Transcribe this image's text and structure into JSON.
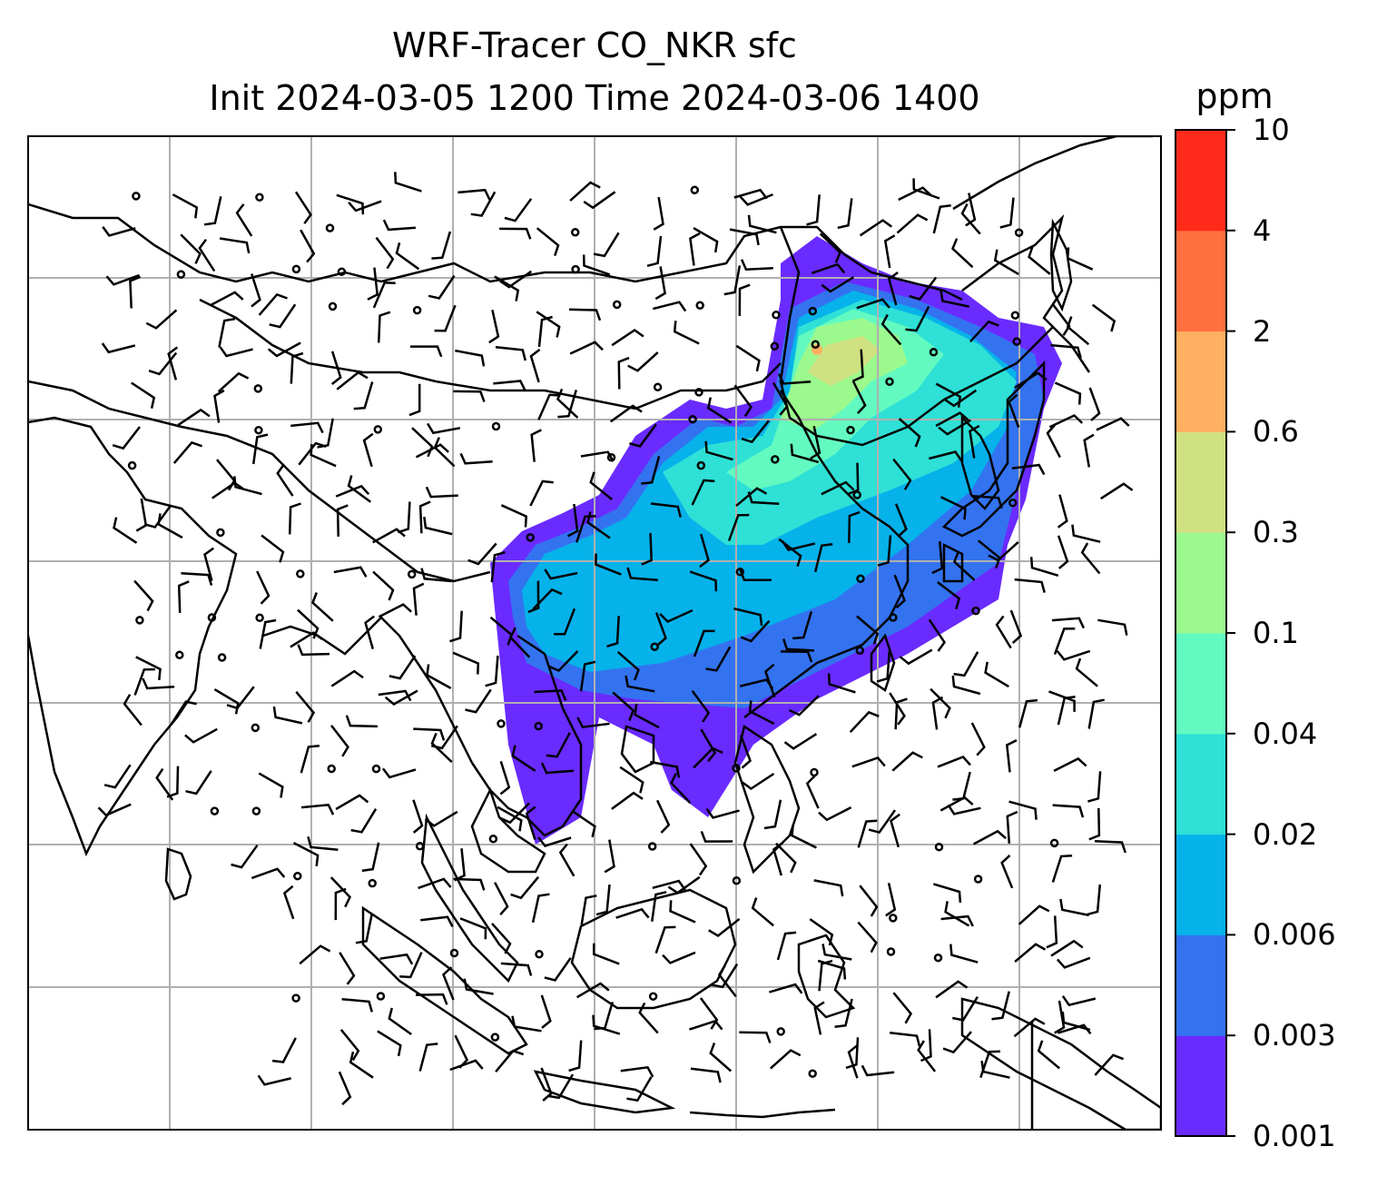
{
  "title_line1": "WRF-Tracer CO_NKR sfc",
  "title_line2": "Init 2024-03-05 1200 Time 2024-03-06 1400",
  "colorbar": {
    "units": "ppm",
    "levels": [
      "0.001",
      "0.003",
      "0.006",
      "0.02",
      "0.04",
      "0.1",
      "0.3",
      "0.6",
      "2",
      "4",
      "10"
    ],
    "colors": [
      "#6a2bff",
      "#3373f0",
      "#06b2ea",
      "#2ee0d6",
      "#62fac0",
      "#9cf98e",
      "#d0e182",
      "#ffb060",
      "#ff7040",
      "#ff2a1a"
    ]
  },
  "map": {
    "land_outline_color": "#000000",
    "gridline_color": "#b0b0b0",
    "wind_barb_color": "#000000"
  }
}
